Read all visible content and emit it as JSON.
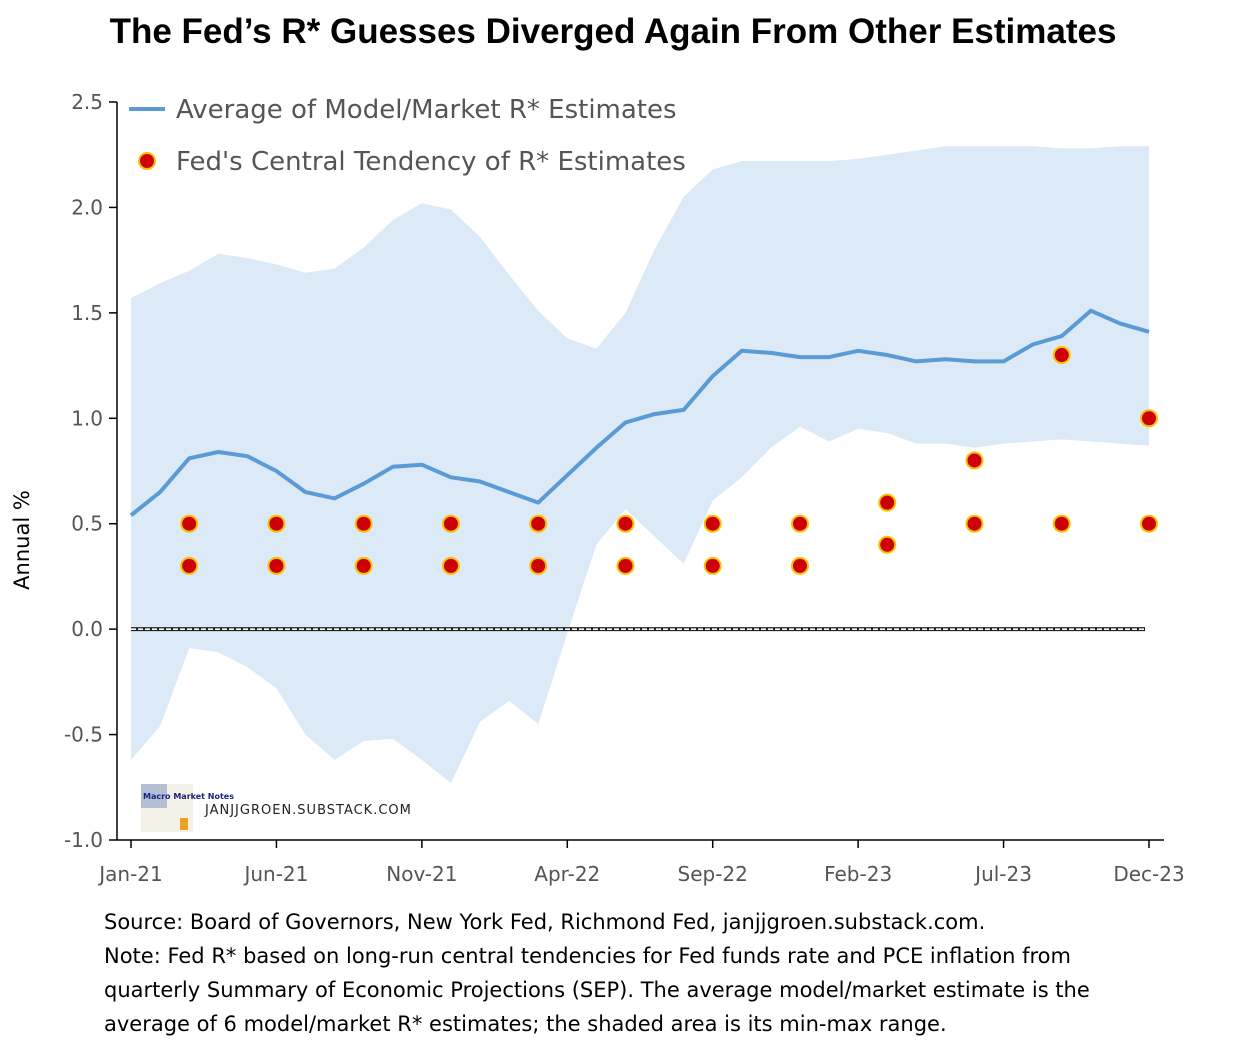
{
  "title": "The Fed’s R* Guesses Diverged Again From Other Estimates",
  "footer": {
    "line1": "Source: Board of Governors, New York Fed, Richmond Fed, janjjgroen.substack.com.",
    "line2": "Note: Fed R* based on long-run central tendencies for Fed funds rate and PCE inflation from",
    "line3": "quarterly Summary of Economic Projections (SEP). The average model/market estimate is the",
    "line4": "average of 6 model/market R* estimates; the shaded area is its  min-max range."
  },
  "watermark": {
    "logo_text": "Macro Market Notes",
    "site": "JANJJGROEN.SUBSTACK.COM"
  },
  "colors": {
    "line": "#5b9bd5",
    "band": "#dce9f6",
    "dot_fill": "#cc0000",
    "dot_stroke": "#f5c200"
  },
  "chart_data": {
    "type": "line",
    "title": "The Fed’s R* Guesses Diverged Again From Other Estimates",
    "xlabel": "",
    "ylabel": "Annual %",
    "ylim": [
      -1.0,
      2.5
    ],
    "yticks": [
      "-1.0",
      "-0.5",
      "0.0",
      "0.5",
      "1.0",
      "1.5",
      "2.0",
      "2.5"
    ],
    "xticks": [
      "Jan-21",
      "Jun-21",
      "Nov-21",
      "Apr-22",
      "Sep-22",
      "Feb-23",
      "Jul-23",
      "Dec-23"
    ],
    "legend_position": "top-left",
    "grid": false,
    "x": [
      "Jan-21",
      "Feb-21",
      "Mar-21",
      "Apr-21",
      "May-21",
      "Jun-21",
      "Jul-21",
      "Aug-21",
      "Sep-21",
      "Oct-21",
      "Nov-21",
      "Dec-21",
      "Jan-22",
      "Feb-22",
      "Mar-22",
      "Apr-22",
      "May-22",
      "Jun-22",
      "Jul-22",
      "Aug-22",
      "Sep-22",
      "Oct-22",
      "Nov-22",
      "Dec-22",
      "Jan-23",
      "Feb-23",
      "Mar-23",
      "Apr-23",
      "May-23",
      "Jun-23",
      "Jul-23",
      "Aug-23",
      "Sep-23",
      "Oct-23",
      "Nov-23",
      "Dec-23"
    ],
    "series": [
      {
        "name": "Average of Model/Market R* Estimates",
        "type": "line",
        "values": [
          0.54,
          0.65,
          0.81,
          0.84,
          0.82,
          0.75,
          0.65,
          0.62,
          0.69,
          0.77,
          0.78,
          0.72,
          0.7,
          0.65,
          0.6,
          0.73,
          0.86,
          0.98,
          1.02,
          1.04,
          1.2,
          1.32,
          1.31,
          1.29,
          1.29,
          1.32,
          1.3,
          1.27,
          1.28,
          1.27,
          1.27,
          1.35,
          1.39,
          1.51,
          1.45,
          1.41
        ]
      },
      {
        "name": "Fed's Central Tendency of R* Estimates",
        "type": "scatter",
        "points": [
          {
            "x": "Mar-21",
            "y": 0.5
          },
          {
            "x": "Mar-21",
            "y": 0.3
          },
          {
            "x": "Jun-21",
            "y": 0.5
          },
          {
            "x": "Jun-21",
            "y": 0.3
          },
          {
            "x": "Sep-21",
            "y": 0.5
          },
          {
            "x": "Sep-21",
            "y": 0.3
          },
          {
            "x": "Dec-21",
            "y": 0.5
          },
          {
            "x": "Dec-21",
            "y": 0.3
          },
          {
            "x": "Mar-22",
            "y": 0.5
          },
          {
            "x": "Mar-22",
            "y": 0.3
          },
          {
            "x": "Jun-22",
            "y": 0.5
          },
          {
            "x": "Jun-22",
            "y": 0.3
          },
          {
            "x": "Sep-22",
            "y": 0.5
          },
          {
            "x": "Sep-22",
            "y": 0.3
          },
          {
            "x": "Dec-22",
            "y": 0.5
          },
          {
            "x": "Dec-22",
            "y": 0.3
          },
          {
            "x": "Mar-23",
            "y": 0.6
          },
          {
            "x": "Mar-23",
            "y": 0.4
          },
          {
            "x": "Jun-23",
            "y": 0.8
          },
          {
            "x": "Jun-23",
            "y": 0.5
          },
          {
            "x": "Sep-23",
            "y": 1.3
          },
          {
            "x": "Sep-23",
            "y": 0.5
          },
          {
            "x": "Dec-23",
            "y": 1.0
          },
          {
            "x": "Dec-23",
            "y": 0.5
          }
        ]
      }
    ],
    "band": {
      "label": "min-max range",
      "upper": [
        1.57,
        1.64,
        1.7,
        1.78,
        1.76,
        1.73,
        1.69,
        1.71,
        1.81,
        1.94,
        2.02,
        1.99,
        1.86,
        1.68,
        1.51,
        1.38,
        1.33,
        1.5,
        1.8,
        2.05,
        2.18,
        2.22,
        2.22,
        2.22,
        2.22,
        2.23,
        2.25,
        2.27,
        2.29,
        2.29,
        2.29,
        2.29,
        2.28,
        2.28,
        2.29,
        2.29
      ],
      "lower": [
        -0.62,
        -0.46,
        -0.09,
        -0.11,
        -0.18,
        -0.28,
        -0.5,
        -0.62,
        -0.53,
        -0.52,
        -0.62,
        -0.73,
        -0.44,
        -0.34,
        -0.45,
        -0.02,
        0.4,
        0.57,
        0.44,
        0.31,
        0.61,
        0.72,
        0.86,
        0.96,
        0.89,
        0.95,
        0.93,
        0.88,
        0.88,
        0.86,
        0.88,
        0.89,
        0.9,
        0.89,
        0.88,
        0.87
      ]
    },
    "reference_line": {
      "y": 0.0,
      "style": "dashed"
    }
  }
}
